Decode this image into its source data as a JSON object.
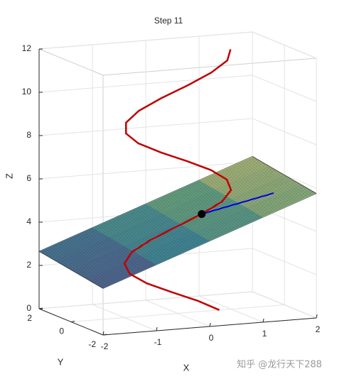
{
  "chart_data": {
    "type": "line3d",
    "title": "Step 11",
    "xlabel": "X",
    "ylabel": "Y",
    "zlabel": "Z",
    "xlim": [
      -2,
      2
    ],
    "ylim": [
      -2,
      2
    ],
    "zlim": [
      0,
      12
    ],
    "xticks": [
      -2,
      -1,
      0,
      1,
      2
    ],
    "yticks": [
      -2,
      0,
      2
    ],
    "zticks": [
      0,
      2,
      4,
      6,
      8,
      10,
      12
    ],
    "grid": true,
    "series": [
      {
        "color": "#c00000",
        "x": [
          0.78,
          0.38,
          -0.11,
          -0.58,
          -0.9,
          -1,
          -0.86,
          -0.5,
          -0.03,
          0.45,
          0.83,
          1,
          0.92,
          0.62,
          0.17,
          -0.32,
          -0.74,
          -0.97,
          -0.97,
          -0.73,
          -0.31,
          0.19,
          0.63,
          0.93,
          0.99
        ],
        "y": [
          0,
          0,
          0,
          0,
          0,
          0,
          0,
          0,
          0,
          0,
          0,
          0,
          0,
          0,
          0,
          0,
          0,
          0,
          0,
          0,
          0,
          0,
          0,
          0,
          0
        ],
        "z": [
          0,
          0.5,
          1,
          1.5,
          2,
          2.5,
          3,
          3.5,
          4,
          4.5,
          5,
          5.5,
          6,
          6.5,
          7,
          7.5,
          8,
          8.5,
          9,
          9.5,
          10,
          10.5,
          11,
          11.5,
          12
        ]
      }
    ],
    "surface": {
      "x": [
        -2,
        -1,
        0,
        1,
        2
      ],
      "y": [
        -2,
        -1,
        0,
        1,
        2
      ],
      "z": [
        [
          2.15,
          3.05,
          3.95,
          4.85,
          5.75
        ],
        [
          2.28,
          3.18,
          4.08,
          4.98,
          5.88
        ],
        [
          2.4,
          3.3,
          4.2,
          5.1,
          6
        ],
        [
          2.53,
          3.43,
          4.33,
          5.23,
          6.13
        ],
        [
          2.65,
          3.55,
          4.45,
          5.35,
          6.25
        ]
      ],
      "colors": [
        "#6b6aa8",
        "#4fa0b5",
        "#7cc09a",
        "#e8e08c"
      ]
    },
    "vector": {
      "color": "#0000e0",
      "x": [
        0.45,
        1.8
      ],
      "y": [
        0,
        0
      ],
      "z": [
        4.5,
        5.2
      ]
    },
    "point": {
      "color": "#000000",
      "x": 0.45,
      "y": 0,
      "z": 4.5
    }
  },
  "watermark": "知乎 @龙行天下288"
}
